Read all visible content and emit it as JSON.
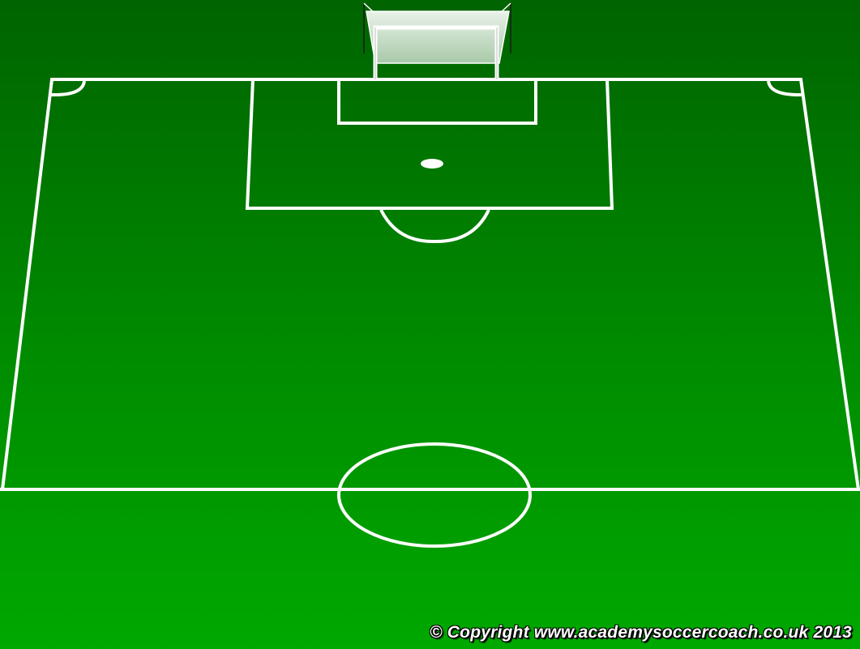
{
  "colors": {
    "grass_top": "#006400",
    "grass_mid": "#008C00",
    "grass_bottom": "#00A800",
    "line": "#ffffff",
    "net": "#c8dcc8"
  },
  "footer": {
    "copyright": "© Copyright www.academysoccercoach.co.uk 2013"
  }
}
